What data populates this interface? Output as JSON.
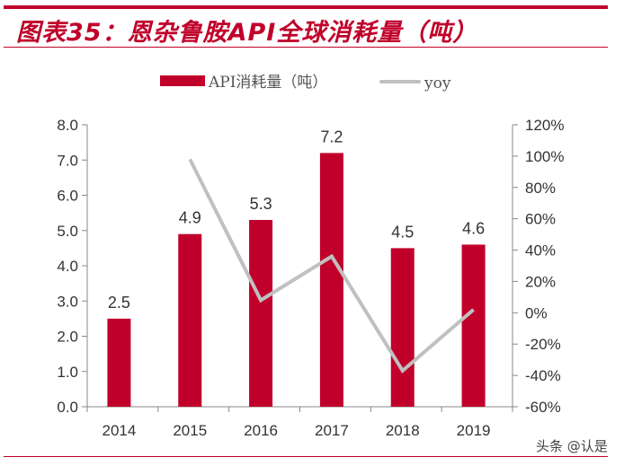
{
  "title": "图表35：恩杂鲁胺API全球消耗量（吨）",
  "watermark": "头条 @认是",
  "chart_data": {
    "type": "bar+line",
    "title": "图表35：恩杂鲁胺API全球消耗量（吨）",
    "categories": [
      "2014",
      "2015",
      "2016",
      "2017",
      "2018",
      "2019"
    ],
    "series": [
      {
        "name": "API消耗量（吨）",
        "type": "bar",
        "axis": "left",
        "color": "#c0002a",
        "values": [
          2.5,
          4.9,
          5.3,
          7.2,
          4.5,
          4.6
        ],
        "data_labels": [
          "2.5",
          "4.9",
          "5.3",
          "7.2",
          "4.5",
          "4.6"
        ]
      },
      {
        "name": "yoy",
        "type": "line",
        "axis": "right",
        "color": "#c0c0c0",
        "values": [
          null,
          98,
          8,
          36,
          -37,
          2
        ]
      }
    ],
    "left_axis": {
      "range": [
        0,
        8
      ],
      "ticks": [
        "0.0",
        "1.0",
        "2.0",
        "3.0",
        "4.0",
        "5.0",
        "6.0",
        "7.0",
        "8.0"
      ]
    },
    "right_axis": {
      "range": [
        -60,
        120
      ],
      "unit": "%",
      "ticks": [
        "-60%",
        "-40%",
        "-20%",
        "0%",
        "20%",
        "40%",
        "60%",
        "80%",
        "100%",
        "120%"
      ]
    },
    "legend": "top",
    "grid": false
  }
}
